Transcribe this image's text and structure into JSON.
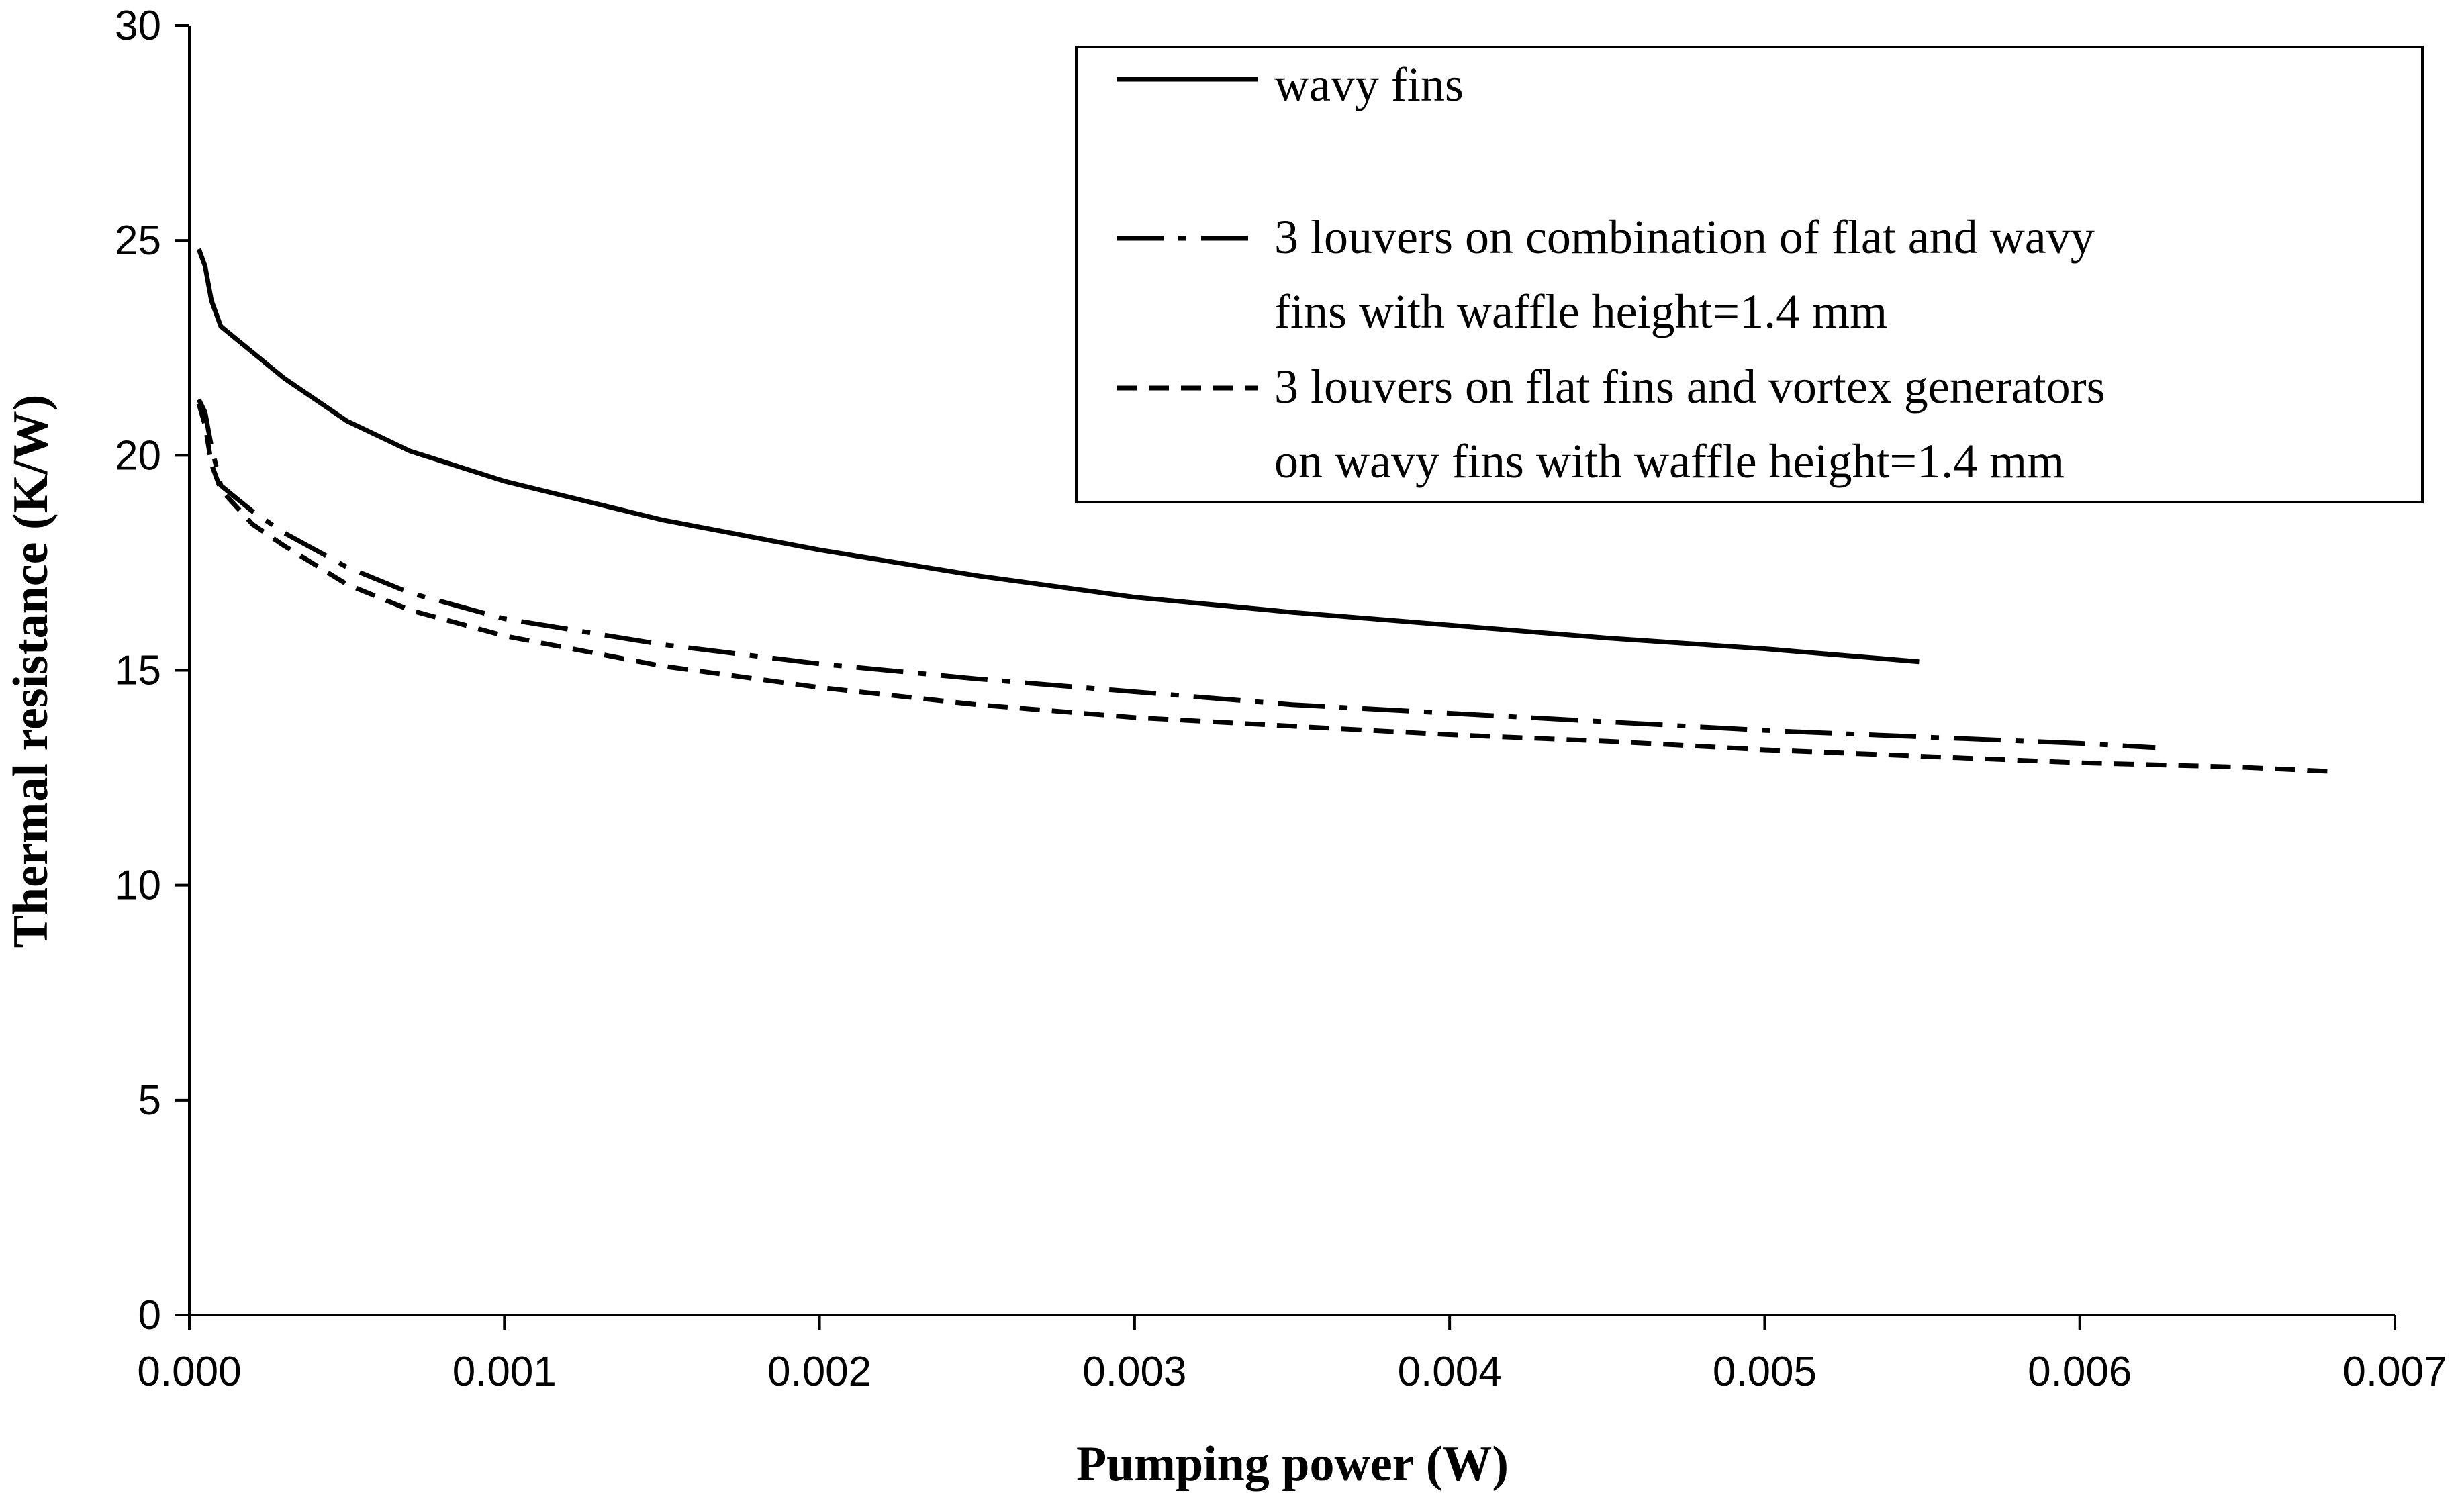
{
  "chart_data": {
    "type": "line",
    "title": "",
    "xlabel": "Pumping power (W)",
    "ylabel": "Thermal resistance (K/W)",
    "xlim": [
      0,
      0.007
    ],
    "ylim": [
      0,
      30
    ],
    "xticks": [
      "0.000",
      "0.001",
      "0.002",
      "0.003",
      "0.004",
      "0.005",
      "0.006",
      "0.007"
    ],
    "yticks": [
      "0",
      "5",
      "10",
      "15",
      "20",
      "25",
      "30"
    ],
    "grid": false,
    "legend_position": "top-right",
    "series": [
      {
        "name": "wavy fins",
        "legend_lines": [
          "wavy fins"
        ],
        "style": "solid",
        "x": [
          3e-05,
          5e-05,
          7e-05,
          0.0001,
          0.00015,
          0.0002,
          0.0003,
          0.0004,
          0.0005,
          0.0007,
          0.001,
          0.0015,
          0.002,
          0.0025,
          0.003,
          0.0035,
          0.004,
          0.0045,
          0.005,
          0.00549
        ],
        "y": [
          24.8,
          24.4,
          23.6,
          23.0,
          22.7,
          22.4,
          21.8,
          21.3,
          20.8,
          20.1,
          19.4,
          18.5,
          17.8,
          17.2,
          16.7,
          16.35,
          16.05,
          15.75,
          15.5,
          15.2
        ]
      },
      {
        "name": "3 louvers on combination of flat and wavy fins with waffle height=1.4 mm",
        "legend_lines": [
          "3 louvers on combination of flat and wavy",
          "fins with waffle height=1.4 mm"
        ],
        "style": "dashdot",
        "x": [
          3e-05,
          5e-05,
          7e-05,
          0.0001,
          0.00015,
          0.0002,
          0.0003,
          0.0005,
          0.0007,
          0.001,
          0.0015,
          0.002,
          0.0025,
          0.003,
          0.0035,
          0.004,
          0.0045,
          0.005,
          0.0055,
          0.006,
          0.00624
        ],
        "y": [
          21.3,
          21.0,
          20.2,
          19.3,
          19.0,
          18.7,
          18.2,
          17.4,
          16.8,
          16.2,
          15.6,
          15.15,
          14.8,
          14.5,
          14.2,
          14.0,
          13.8,
          13.6,
          13.45,
          13.3,
          13.2
        ]
      },
      {
        "name": "3 louvers on flat fins and vortex generators on wavy fins with waffle height=1.4 mm",
        "legend_lines": [
          "3 louvers on flat fins and vortex generators",
          "on wavy fins with waffle height=1.4 mm"
        ],
        "style": "dashed",
        "x": [
          3e-05,
          5e-05,
          7e-05,
          0.0001,
          0.00015,
          0.0002,
          0.0003,
          0.0005,
          0.0007,
          0.001,
          0.0015,
          0.002,
          0.0025,
          0.003,
          0.0035,
          0.004,
          0.0045,
          0.005,
          0.0055,
          0.006,
          0.0065,
          0.00679
        ],
        "y": [
          21.2,
          20.7,
          19.8,
          19.2,
          18.8,
          18.4,
          17.9,
          17.0,
          16.4,
          15.8,
          15.1,
          14.6,
          14.2,
          13.9,
          13.7,
          13.5,
          13.35,
          13.15,
          13.0,
          12.85,
          12.75,
          12.65
        ]
      }
    ]
  }
}
